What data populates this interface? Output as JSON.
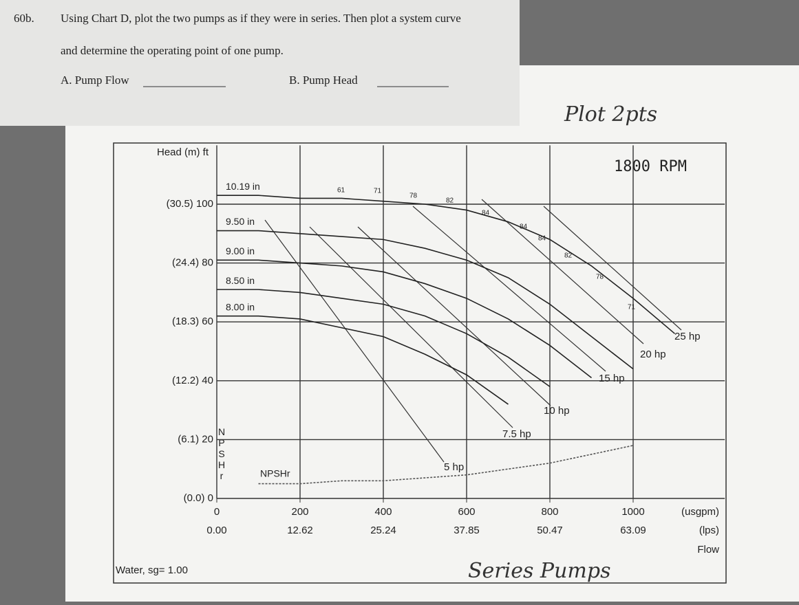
{
  "question": {
    "number": "60b.",
    "line1": "Using Chart D, plot the two pumps as if they were in series. Then plot a system curve",
    "line2": "and determine the operating point of one pump.",
    "answer_a": "A. Pump Flow",
    "answer_b": "B. Pump Head"
  },
  "handwriting": {
    "top": "Plot 2pts",
    "bottom": "Series Pumps"
  },
  "chart_data": {
    "type": "line",
    "title": "1800 RPM",
    "y_label": "Head (m) ft",
    "x_unit": "(usgpm)",
    "x2_unit": "(lps)",
    "x_label": "Flow",
    "footnote": "Water, sg= 1.00",
    "npsh_axis": "NPSHr",
    "x": [
      0,
      100,
      200,
      300,
      400,
      500,
      600,
      700,
      800,
      900,
      1000,
      1100
    ],
    "series": [
      {
        "name": "10.19 in",
        "color": "#222",
        "values": [
          103,
          103,
          102,
          102,
          101,
          100,
          98,
          94,
          88,
          79,
          68,
          56
        ]
      },
      {
        "name": "9.50 in",
        "color": "#222",
        "values": [
          91,
          91,
          90,
          89,
          88,
          85,
          81,
          75,
          66,
          55,
          44,
          null
        ]
      },
      {
        "name": "9.00 in",
        "color": "#222",
        "values": [
          81,
          81,
          80,
          79,
          77,
          73,
          68,
          61,
          52,
          41,
          null,
          null
        ]
      },
      {
        "name": "8.50 in",
        "color": "#222",
        "values": [
          71,
          71,
          70,
          68,
          66,
          62,
          56,
          48,
          38,
          null,
          null,
          null
        ]
      },
      {
        "name": "8.00 in",
        "color": "#222",
        "values": [
          62,
          62,
          61,
          58,
          55,
          49,
          42,
          32,
          null,
          null,
          null,
          null
        ]
      },
      {
        "name": "NPSHr",
        "color": "#555",
        "values": [
          null,
          5,
          5,
          6,
          6,
          7,
          8,
          10,
          12,
          15,
          18,
          null
        ]
      }
    ],
    "efficiency_labels": [
      "61",
      "71",
      "78",
      "82",
      "84",
      "84",
      "84",
      "82",
      "78",
      "71"
    ],
    "hp_labels": [
      "5 hp",
      "7.5 hp",
      "10 hp",
      "15 hp",
      "20 hp",
      "25 hp"
    ],
    "xlim": [
      0,
      1220
    ],
    "ylim": [
      0,
      120
    ],
    "xticks": [
      0,
      200,
      400,
      600,
      800,
      1000
    ],
    "x2ticks": [
      {
        "value": 0,
        "label": "0.00"
      },
      {
        "value": 200,
        "label": "12.62"
      },
      {
        "value": 400,
        "label": "25.24"
      },
      {
        "value": 600,
        "label": "37.85"
      },
      {
        "value": 800,
        "label": "50.47"
      },
      {
        "value": 1000,
        "label": "63.09"
      }
    ],
    "yticks": [
      {
        "value": 0,
        "label": "(0.0) 0"
      },
      {
        "value": 20,
        "label": "(6.1) 20"
      },
      {
        "value": 40,
        "label": "(12.2) 40"
      },
      {
        "value": 60,
        "label": "(18.3) 60"
      },
      {
        "value": 80,
        "label": "(24.4) 80"
      },
      {
        "value": 100,
        "label": "(30.5) 100"
      }
    ],
    "grid": true
  }
}
